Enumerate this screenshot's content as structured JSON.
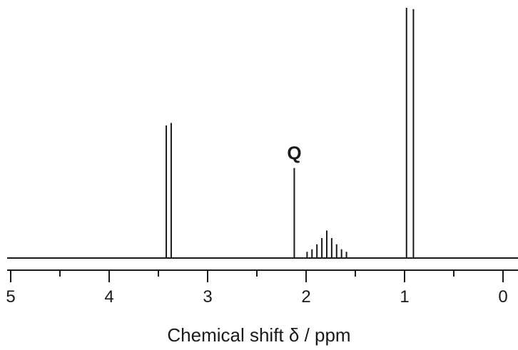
{
  "chart_data": {
    "type": "nmr-spectrum",
    "xlabel": "Chemical shift δ / ppm",
    "xlim": [
      5.0,
      0.0
    ],
    "x_reversed": true,
    "major_ticks": [
      5,
      4,
      3,
      2,
      1,
      0
    ],
    "major_tick_labels": [
      "5",
      "4",
      "3",
      "2",
      "1",
      "0"
    ],
    "minor_ticks": [
      4.5,
      3.5,
      2.5,
      1.5,
      0.5
    ],
    "relative_intensity_max": 1.0,
    "annotations": [
      {
        "text": "Q",
        "x": 2.12
      }
    ],
    "peaks": [
      {
        "x": 3.42,
        "height": 0.53
      },
      {
        "x": 3.37,
        "height": 0.54
      },
      {
        "x": 2.12,
        "height": 0.36
      },
      {
        "x": 1.99,
        "height": 0.025
      },
      {
        "x": 1.94,
        "height": 0.035
      },
      {
        "x": 1.89,
        "height": 0.055
      },
      {
        "x": 1.84,
        "height": 0.08
      },
      {
        "x": 1.79,
        "height": 0.11
      },
      {
        "x": 1.74,
        "height": 0.08
      },
      {
        "x": 1.69,
        "height": 0.055
      },
      {
        "x": 1.64,
        "height": 0.035
      },
      {
        "x": 1.59,
        "height": 0.025
      },
      {
        "x": 0.98,
        "height": 1.0
      },
      {
        "x": 0.91,
        "height": 0.995
      }
    ],
    "colors": {
      "ink": "#1a1a1a",
      "background": "#ffffff"
    }
  }
}
